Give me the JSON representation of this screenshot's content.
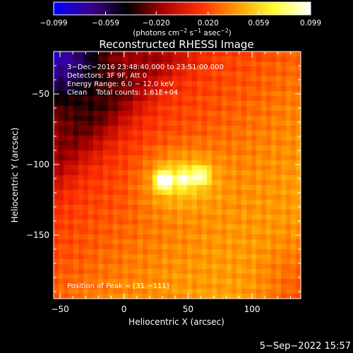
{
  "chart_data": {
    "type": "heatmap",
    "title": "Reconstructed RHESSI Image",
    "xlabel": "Heliocentric X (arcsec)",
    "ylabel": "Heliocentric Y (arcsec)",
    "xlim": [
      -55,
      138
    ],
    "ylim": [
      -195,
      -20
    ],
    "x_ticks": [
      -50,
      0,
      50,
      100
    ],
    "y_ticks": [
      -50,
      -100,
      -150
    ],
    "x_tick_labels": [
      "−50",
      "0",
      "50",
      "100"
    ],
    "y_tick_labels": [
      "−50",
      "−100",
      "−150"
    ],
    "colorbar": {
      "min": -0.099,
      "max": 0.099,
      "ticks": [
        -0.099,
        -0.059,
        -0.02,
        0.02,
        0.059,
        0.099
      ],
      "tick_labels": [
        "−0.099",
        "−0.059",
        "−0.020",
        "0.020",
        "0.059",
        "0.099"
      ],
      "unit_prefix": "(photons cm",
      "unit_exp1": "−2",
      "unit_mid1": " s",
      "unit_exp2": "−1",
      "unit_mid2": " asec",
      "unit_exp3": "−2",
      "unit_suffix": ")",
      "colormap": [
        "#0000ff",
        "#3b0090",
        "#000000",
        "#b00000",
        "#ff3000",
        "#ff9a00",
        "#ffff30",
        "#ffffff"
      ]
    },
    "info_lines": [
      "3−Dec−2016 23:48:40.000 to 23:51:00.000",
      "Detectors: 3F 9F, Att 0",
      "Energy Range: 6.0 − 12.0 keV",
      "Clean    Total counts: 1.61E+04"
    ],
    "peak_label": "Position of Peak = [31,−111]",
    "peak_position": [
      31,
      -111
    ],
    "sources": [
      {
        "x": 31,
        "y": -111,
        "amplitude": 0.099
      },
      {
        "x": 47,
        "y": -110,
        "amplitude": 0.055
      },
      {
        "x": 60,
        "y": -108,
        "amplitude": 0.06
      }
    ]
  },
  "footer": {
    "timestamp": "5−Sep−2022 15:57"
  }
}
